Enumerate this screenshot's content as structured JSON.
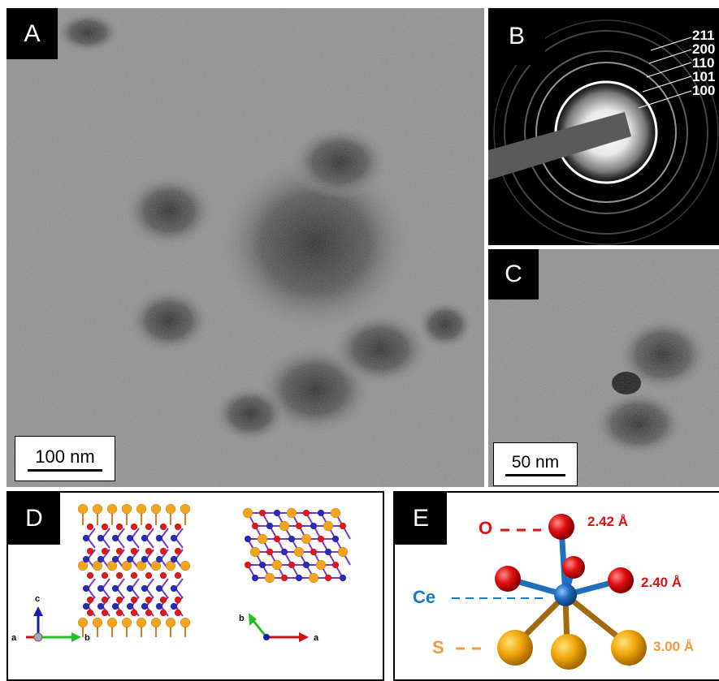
{
  "panels": {
    "A": {
      "label": "A",
      "scale": "100 nm"
    },
    "B": {
      "label": "B",
      "rings": [
        "211",
        "200",
        "110",
        "101",
        "100"
      ]
    },
    "C": {
      "label": "C",
      "scale": "50 nm"
    },
    "D": {
      "label": "D",
      "axes_left": [
        "c",
        "a",
        "b"
      ],
      "axes_right": [
        "b",
        "a"
      ]
    },
    "E": {
      "label": "E",
      "atoms": [
        "O",
        "Ce",
        "S"
      ],
      "bonds": [
        "2.42 Å",
        "2.40 Å",
        "3.00 Å"
      ]
    }
  },
  "colors": {
    "O": "#e31010",
    "Ce": "#1f78c4",
    "S": "#f0a030",
    "bond_label_S": "#f59a3c"
  }
}
